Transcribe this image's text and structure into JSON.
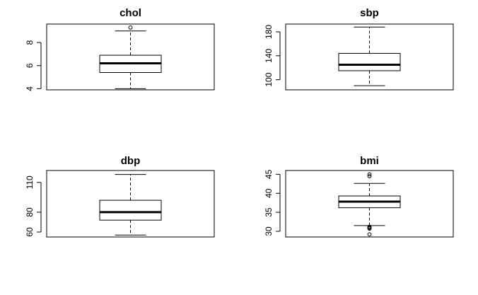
{
  "chart_data": [
    {
      "type": "boxplot",
      "title": "chol",
      "ylim": [
        3.9,
        9.6
      ],
      "yticks": [
        4,
        6,
        8
      ],
      "box": {
        "whisker_low": 4.0,
        "q1": 5.4,
        "median": 6.2,
        "q3": 6.9,
        "whisker_high": 9.0
      },
      "outliers": [
        9.3
      ]
    },
    {
      "type": "boxplot",
      "title": "sbp",
      "ylim": [
        83,
        193
      ],
      "yticks": [
        100,
        140,
        180
      ],
      "box": {
        "whisker_low": 90,
        "q1": 115,
        "median": 125,
        "q3": 144,
        "whisker_high": 188
      },
      "outliers": []
    },
    {
      "type": "boxplot",
      "title": "dbp",
      "ylim": [
        55,
        122
      ],
      "yticks": [
        60,
        80,
        110
      ],
      "box": {
        "whisker_low": 57,
        "q1": 72,
        "median": 80,
        "q3": 92,
        "whisker_high": 118
      },
      "outliers": []
    },
    {
      "type": "boxplot",
      "title": "bmi",
      "ylim": [
        28.5,
        46
      ],
      "yticks": [
        30,
        35,
        40,
        45
      ],
      "box": {
        "whisker_low": 31.5,
        "q1": 36.2,
        "median": 37.8,
        "q3": 39.3,
        "whisker_high": 42.6
      },
      "outliers": [
        29.2,
        30.7,
        30.9,
        31.0,
        31.2,
        44.5,
        45.0
      ]
    }
  ]
}
